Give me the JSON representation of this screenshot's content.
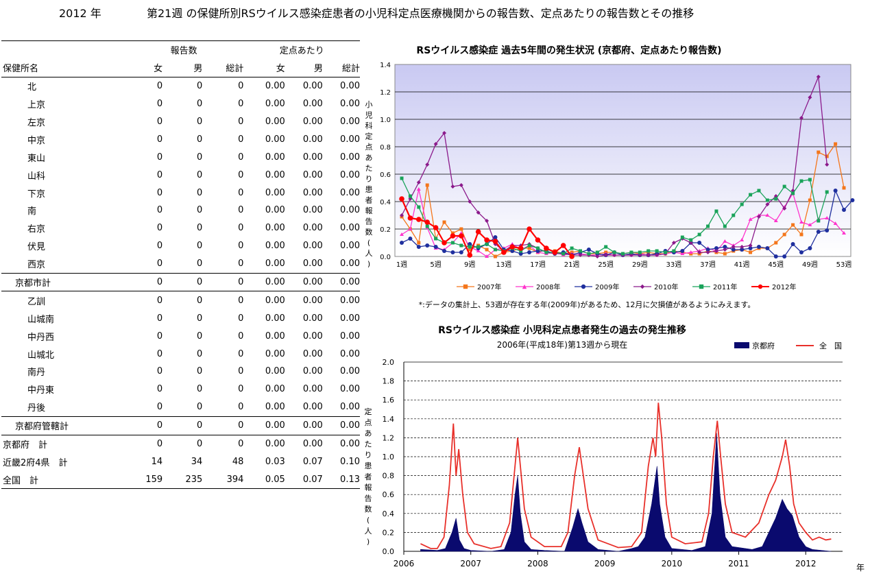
{
  "header": {
    "year_label": "2012 年",
    "title": "第21週 の保健所別RSウイルス感染症患者の小児科定点医療機関からの報告数、定点あたりの報告数とその推移"
  },
  "table": {
    "group_reports": "報告数",
    "group_per_site": "定点あたり",
    "col_name": "保健所名",
    "cols": [
      "女",
      "男",
      "総計",
      "女",
      "男",
      "総計"
    ],
    "rows": [
      {
        "name": "北",
        "vals": [
          "0",
          "0",
          "0",
          "0.00",
          "0.00",
          "0.00"
        ]
      },
      {
        "name": "上京",
        "vals": [
          "0",
          "0",
          "0",
          "0.00",
          "0.00",
          "0.00"
        ]
      },
      {
        "name": "左京",
        "vals": [
          "0",
          "0",
          "0",
          "0.00",
          "0.00",
          "0.00"
        ]
      },
      {
        "name": "中京",
        "vals": [
          "0",
          "0",
          "0",
          "0.00",
          "0.00",
          "0.00"
        ]
      },
      {
        "name": "東山",
        "vals": [
          "0",
          "0",
          "0",
          "0.00",
          "0.00",
          "0.00"
        ]
      },
      {
        "name": "山科",
        "vals": [
          "0",
          "0",
          "0",
          "0.00",
          "0.00",
          "0.00"
        ]
      },
      {
        "name": "下京",
        "vals": [
          "0",
          "0",
          "0",
          "0.00",
          "0.00",
          "0.00"
        ]
      },
      {
        "name": "南",
        "vals": [
          "0",
          "0",
          "0",
          "0.00",
          "0.00",
          "0.00"
        ]
      },
      {
        "name": "右京",
        "vals": [
          "0",
          "0",
          "0",
          "0.00",
          "0.00",
          "0.00"
        ]
      },
      {
        "name": "伏見",
        "vals": [
          "0",
          "0",
          "0",
          "0.00",
          "0.00",
          "0.00"
        ]
      },
      {
        "name": "西京",
        "vals": [
          "0",
          "0",
          "0",
          "0.00",
          "0.00",
          "0.00"
        ]
      },
      {
        "name": "京都市計",
        "vals": [
          "0",
          "0",
          "0",
          "0.00",
          "0.00",
          "0.00"
        ]
      },
      {
        "name": "乙訓",
        "vals": [
          "0",
          "0",
          "0",
          "0.00",
          "0.00",
          "0.00"
        ]
      },
      {
        "name": "山城南",
        "vals": [
          "0",
          "0",
          "0",
          "0.00",
          "0.00",
          "0.00"
        ]
      },
      {
        "name": "中丹西",
        "vals": [
          "0",
          "0",
          "0",
          "0.00",
          "0.00",
          "0.00"
        ]
      },
      {
        "name": "山城北",
        "vals": [
          "0",
          "0",
          "0",
          "0.00",
          "0.00",
          "0.00"
        ]
      },
      {
        "name": "南丹",
        "vals": [
          "0",
          "0",
          "0",
          "0.00",
          "0.00",
          "0.00"
        ]
      },
      {
        "name": "中丹東",
        "vals": [
          "0",
          "0",
          "0",
          "0.00",
          "0.00",
          "0.00"
        ]
      },
      {
        "name": "丹後",
        "vals": [
          "0",
          "0",
          "0",
          "0.00",
          "0.00",
          "0.00"
        ]
      },
      {
        "name": "京都府管轄計",
        "vals": [
          "0",
          "0",
          "0",
          "0.00",
          "0.00",
          "0.00"
        ]
      },
      {
        "name": "京都府　計",
        "vals": [
          "0",
          "0",
          "0",
          "0.00",
          "0.00",
          "0.00"
        ]
      },
      {
        "name": "近畿2府4県　計",
        "vals": [
          "14",
          "34",
          "48",
          "0.03",
          "0.07",
          "0.10"
        ]
      },
      {
        "name": "全国　計",
        "vals": [
          "159",
          "235",
          "394",
          "0.05",
          "0.07",
          "0.13"
        ]
      }
    ]
  },
  "chart_data": [
    {
      "type": "line",
      "title": "RSウイルス感染症  過去5年間の発生状況 (京都府、定点あたり報告数)",
      "ylabel": "小児科定点あたり患者報告数(人)",
      "ylim": [
        0,
        1.4
      ],
      "yticks": [
        "0.0",
        "0.2",
        "0.4",
        "0.6",
        "0.8",
        "1.0",
        "1.2",
        "1.4"
      ],
      "xticks": [
        "1週",
        "5週",
        "9週",
        "13週",
        "17週",
        "21週",
        "25週",
        "29週",
        "33週",
        "37週",
        "41週",
        "45週",
        "49週",
        "53週"
      ],
      "note": "*:データの集計上、53週が存在する年(2009年)があるため、12月に欠損値があるようにみえます。",
      "series": [
        {
          "name": "2007年",
          "color": "#f4761b",
          "marker": "square",
          "values": [
            0.29,
            0.2,
            0.1,
            0.52,
            0.13,
            0.25,
            0.17,
            0.2,
            0.05,
            0.08,
            0.05,
            0.0,
            0.03,
            0.04,
            0.06,
            0.06,
            0.03,
            0.05,
            0.04,
            0.02,
            0.03,
            0.04,
            0.02,
            0.02,
            0.03,
            0.03,
            0.02,
            0.03,
            0.02,
            0.03,
            0.02,
            0.02,
            0.04,
            0.03,
            0.02,
            0.02,
            0.04,
            0.03,
            0.02,
            0.04,
            0.05,
            0.03,
            0.06,
            0.06,
            0.1,
            0.16,
            0.23,
            0.16,
            0.41,
            0.76,
            0.73,
            0.82,
            0.5
          ]
        },
        {
          "name": "2008年",
          "color": "#ff33cc",
          "marker": "triangle",
          "values": [
            0.16,
            0.2,
            0.49,
            0.21,
            0.06,
            0.05,
            0.1,
            0.17,
            0.07,
            0.04,
            0.0,
            0.05,
            0.06,
            0.09,
            0.05,
            0.08,
            0.03,
            0.02,
            0.03,
            0.01,
            0.02,
            0.02,
            0.01,
            0.01,
            0.02,
            0.01,
            0.01,
            0.01,
            0.02,
            0.01,
            0.01,
            0.02,
            0.03,
            0.02,
            0.03,
            0.04,
            0.06,
            0.04,
            0.11,
            0.08,
            0.12,
            0.27,
            0.3,
            0.3,
            0.26,
            0.36,
            0.46,
            0.25,
            0.23,
            0.27,
            0.28,
            0.24,
            0.17
          ]
        },
        {
          "name": "2009年",
          "color": "#1f2f9e",
          "marker": "circle",
          "values": [
            0.1,
            0.13,
            0.07,
            0.08,
            0.07,
            0.04,
            0.03,
            0.03,
            0.09,
            0.06,
            0.09,
            0.14,
            0.05,
            0.04,
            0.02,
            0.03,
            0.04,
            0.04,
            0.02,
            0.03,
            0.01,
            0.03,
            0.05,
            0.02,
            0.01,
            0.03,
            0.01,
            0.02,
            0.01,
            0.01,
            0.02,
            0.04,
            0.03,
            0.04,
            0.1,
            0.1,
            0.05,
            0.06,
            0.07,
            0.05,
            0.05,
            0.06,
            0.07,
            0.06,
            0.0,
            0.0,
            0.09,
            0.03,
            0.06,
            0.18,
            0.19,
            0.48,
            0.34,
            0.41
          ]
        },
        {
          "name": "2010年",
          "color": "#8b1a8b",
          "marker": "diamond",
          "values": [
            0.3,
            0.42,
            0.54,
            0.67,
            0.82,
            0.9,
            0.51,
            0.52,
            0.4,
            0.32,
            0.26,
            0.09,
            0.04,
            0.08,
            0.08,
            0.09,
            0.06,
            0.03,
            0.02,
            0.02,
            0.01,
            0.01,
            0.01,
            0.0,
            0.01,
            0.01,
            0.01,
            0.01,
            0.01,
            0.01,
            0.01,
            0.02,
            0.1,
            0.13,
            0.1,
            0.03,
            0.03,
            0.04,
            0.05,
            0.07,
            0.07,
            0.08,
            0.29,
            0.38,
            0.44,
            0.35,
            0.48,
            1.01,
            1.16,
            1.31,
            0.67
          ]
        },
        {
          "name": "2011年",
          "color": "#1aa35a",
          "marker": "square",
          "values": [
            0.57,
            0.44,
            0.36,
            0.22,
            0.13,
            0.1,
            0.1,
            0.08,
            0.07,
            0.07,
            0.09,
            0.05,
            0.04,
            0.06,
            0.04,
            0.08,
            0.06,
            0.03,
            0.03,
            0.02,
            0.06,
            0.04,
            0.02,
            0.03,
            0.07,
            0.03,
            0.02,
            0.03,
            0.03,
            0.04,
            0.04,
            0.03,
            0.04,
            0.14,
            0.12,
            0.16,
            0.22,
            0.33,
            0.22,
            0.3,
            0.38,
            0.45,
            0.48,
            0.41,
            0.42,
            0.51,
            0.46,
            0.55,
            0.56,
            0.26,
            0.47
          ]
        },
        {
          "name": "2012年",
          "color": "#ff0000",
          "marker": "circle",
          "values": [
            0.42,
            0.28,
            0.27,
            0.25,
            0.21,
            0.1,
            0.15,
            0.15,
            0.01,
            0.18,
            0.12,
            0.11,
            0.03,
            0.07,
            0.06,
            0.2,
            0.12,
            0.06,
            0.03,
            0.08,
            0.0
          ]
        }
      ]
    },
    {
      "type": "area",
      "title": "RSウイルス感染症  小児科定点患者発生の過去の発生推移",
      "subtitle": "2006年(平成18年)第13週から現在",
      "ylabel": "定点あたり患者報告数(人)",
      "xlabel": "年",
      "ylim": [
        0,
        2.0
      ],
      "yticks": [
        "0.0",
        "0.2",
        "0.4",
        "0.6",
        "0.8",
        "1.0",
        "1.2",
        "1.4",
        "1.6",
        "1.8",
        "2.0"
      ],
      "xticks": [
        "2006",
        "2007",
        "2008",
        "2009",
        "2010",
        "2011",
        "2012"
      ],
      "series": [
        {
          "name": "京都府",
          "color": "#0a0a6e",
          "kind": "area",
          "points": [
            [
              2006.25,
              0.02
            ],
            [
              2006.5,
              0.01
            ],
            [
              2006.62,
              0.03
            ],
            [
              2006.72,
              0.2
            ],
            [
              2006.78,
              0.35
            ],
            [
              2006.83,
              0.12
            ],
            [
              2006.9,
              0.03
            ],
            [
              2007.0,
              0.01
            ],
            [
              2007.3,
              0.0
            ],
            [
              2007.5,
              0.02
            ],
            [
              2007.6,
              0.2
            ],
            [
              2007.66,
              0.6
            ],
            [
              2007.7,
              0.8
            ],
            [
              2007.74,
              0.4
            ],
            [
              2007.8,
              0.1
            ],
            [
              2007.9,
              0.02
            ],
            [
              2008.1,
              0.01
            ],
            [
              2008.4,
              0.0
            ],
            [
              2008.52,
              0.25
            ],
            [
              2008.6,
              0.45
            ],
            [
              2008.66,
              0.3
            ],
            [
              2008.75,
              0.1
            ],
            [
              2008.9,
              0.02
            ],
            [
              2009.2,
              0.0
            ],
            [
              2009.4,
              0.03
            ],
            [
              2009.5,
              0.05
            ],
            [
              2009.6,
              0.15
            ],
            [
              2009.7,
              0.5
            ],
            [
              2009.78,
              0.9
            ],
            [
              2009.82,
              0.5
            ],
            [
              2009.9,
              0.15
            ],
            [
              2010.0,
              0.03
            ],
            [
              2010.3,
              0.01
            ],
            [
              2010.5,
              0.05
            ],
            [
              2010.6,
              0.4
            ],
            [
              2010.67,
              1.25
            ],
            [
              2010.72,
              0.6
            ],
            [
              2010.8,
              0.15
            ],
            [
              2010.9,
              0.05
            ],
            [
              2011.2,
              0.02
            ],
            [
              2011.35,
              0.05
            ],
            [
              2011.45,
              0.2
            ],
            [
              2011.55,
              0.35
            ],
            [
              2011.65,
              0.55
            ],
            [
              2011.72,
              0.45
            ],
            [
              2011.8,
              0.38
            ],
            [
              2011.9,
              0.15
            ],
            [
              2012.0,
              0.05
            ],
            [
              2012.1,
              0.02
            ],
            [
              2012.38,
              0.0
            ]
          ]
        },
        {
          "name": "全　国",
          "color": "#e8302a",
          "kind": "line",
          "points": [
            [
              2006.25,
              0.08
            ],
            [
              2006.4,
              0.03
            ],
            [
              2006.5,
              0.03
            ],
            [
              2006.6,
              0.15
            ],
            [
              2006.68,
              0.7
            ],
            [
              2006.74,
              1.35
            ],
            [
              2006.78,
              0.8
            ],
            [
              2006.82,
              1.08
            ],
            [
              2006.88,
              0.6
            ],
            [
              2006.95,
              0.2
            ],
            [
              2007.05,
              0.08
            ],
            [
              2007.3,
              0.03
            ],
            [
              2007.45,
              0.05
            ],
            [
              2007.58,
              0.3
            ],
            [
              2007.66,
              0.9
            ],
            [
              2007.7,
              1.2
            ],
            [
              2007.74,
              0.9
            ],
            [
              2007.8,
              0.45
            ],
            [
              2007.9,
              0.15
            ],
            [
              2008.1,
              0.05
            ],
            [
              2008.35,
              0.05
            ],
            [
              2008.45,
              0.2
            ],
            [
              2008.55,
              0.8
            ],
            [
              2008.62,
              1.1
            ],
            [
              2008.68,
              0.8
            ],
            [
              2008.75,
              0.45
            ],
            [
              2008.9,
              0.12
            ],
            [
              2009.2,
              0.04
            ],
            [
              2009.4,
              0.05
            ],
            [
              2009.55,
              0.2
            ],
            [
              2009.65,
              0.9
            ],
            [
              2009.72,
              1.2
            ],
            [
              2009.76,
              1.0
            ],
            [
              2009.8,
              1.57
            ],
            [
              2009.85,
              1.2
            ],
            [
              2009.92,
              0.5
            ],
            [
              2010.0,
              0.15
            ],
            [
              2010.2,
              0.08
            ],
            [
              2010.45,
              0.1
            ],
            [
              2010.55,
              0.4
            ],
            [
              2010.62,
              1.0
            ],
            [
              2010.68,
              1.38
            ],
            [
              2010.73,
              1.0
            ],
            [
              2010.8,
              0.5
            ],
            [
              2010.9,
              0.2
            ],
            [
              2011.1,
              0.15
            ],
            [
              2011.3,
              0.3
            ],
            [
              2011.45,
              0.6
            ],
            [
              2011.55,
              0.75
            ],
            [
              2011.65,
              1.0
            ],
            [
              2011.7,
              1.18
            ],
            [
              2011.76,
              0.9
            ],
            [
              2011.82,
              0.5
            ],
            [
              2011.9,
              0.3
            ],
            [
              2012.0,
              0.2
            ],
            [
              2012.1,
              0.12
            ],
            [
              2012.2,
              0.15
            ],
            [
              2012.3,
              0.12
            ],
            [
              2012.38,
              0.13
            ]
          ]
        }
      ]
    }
  ]
}
